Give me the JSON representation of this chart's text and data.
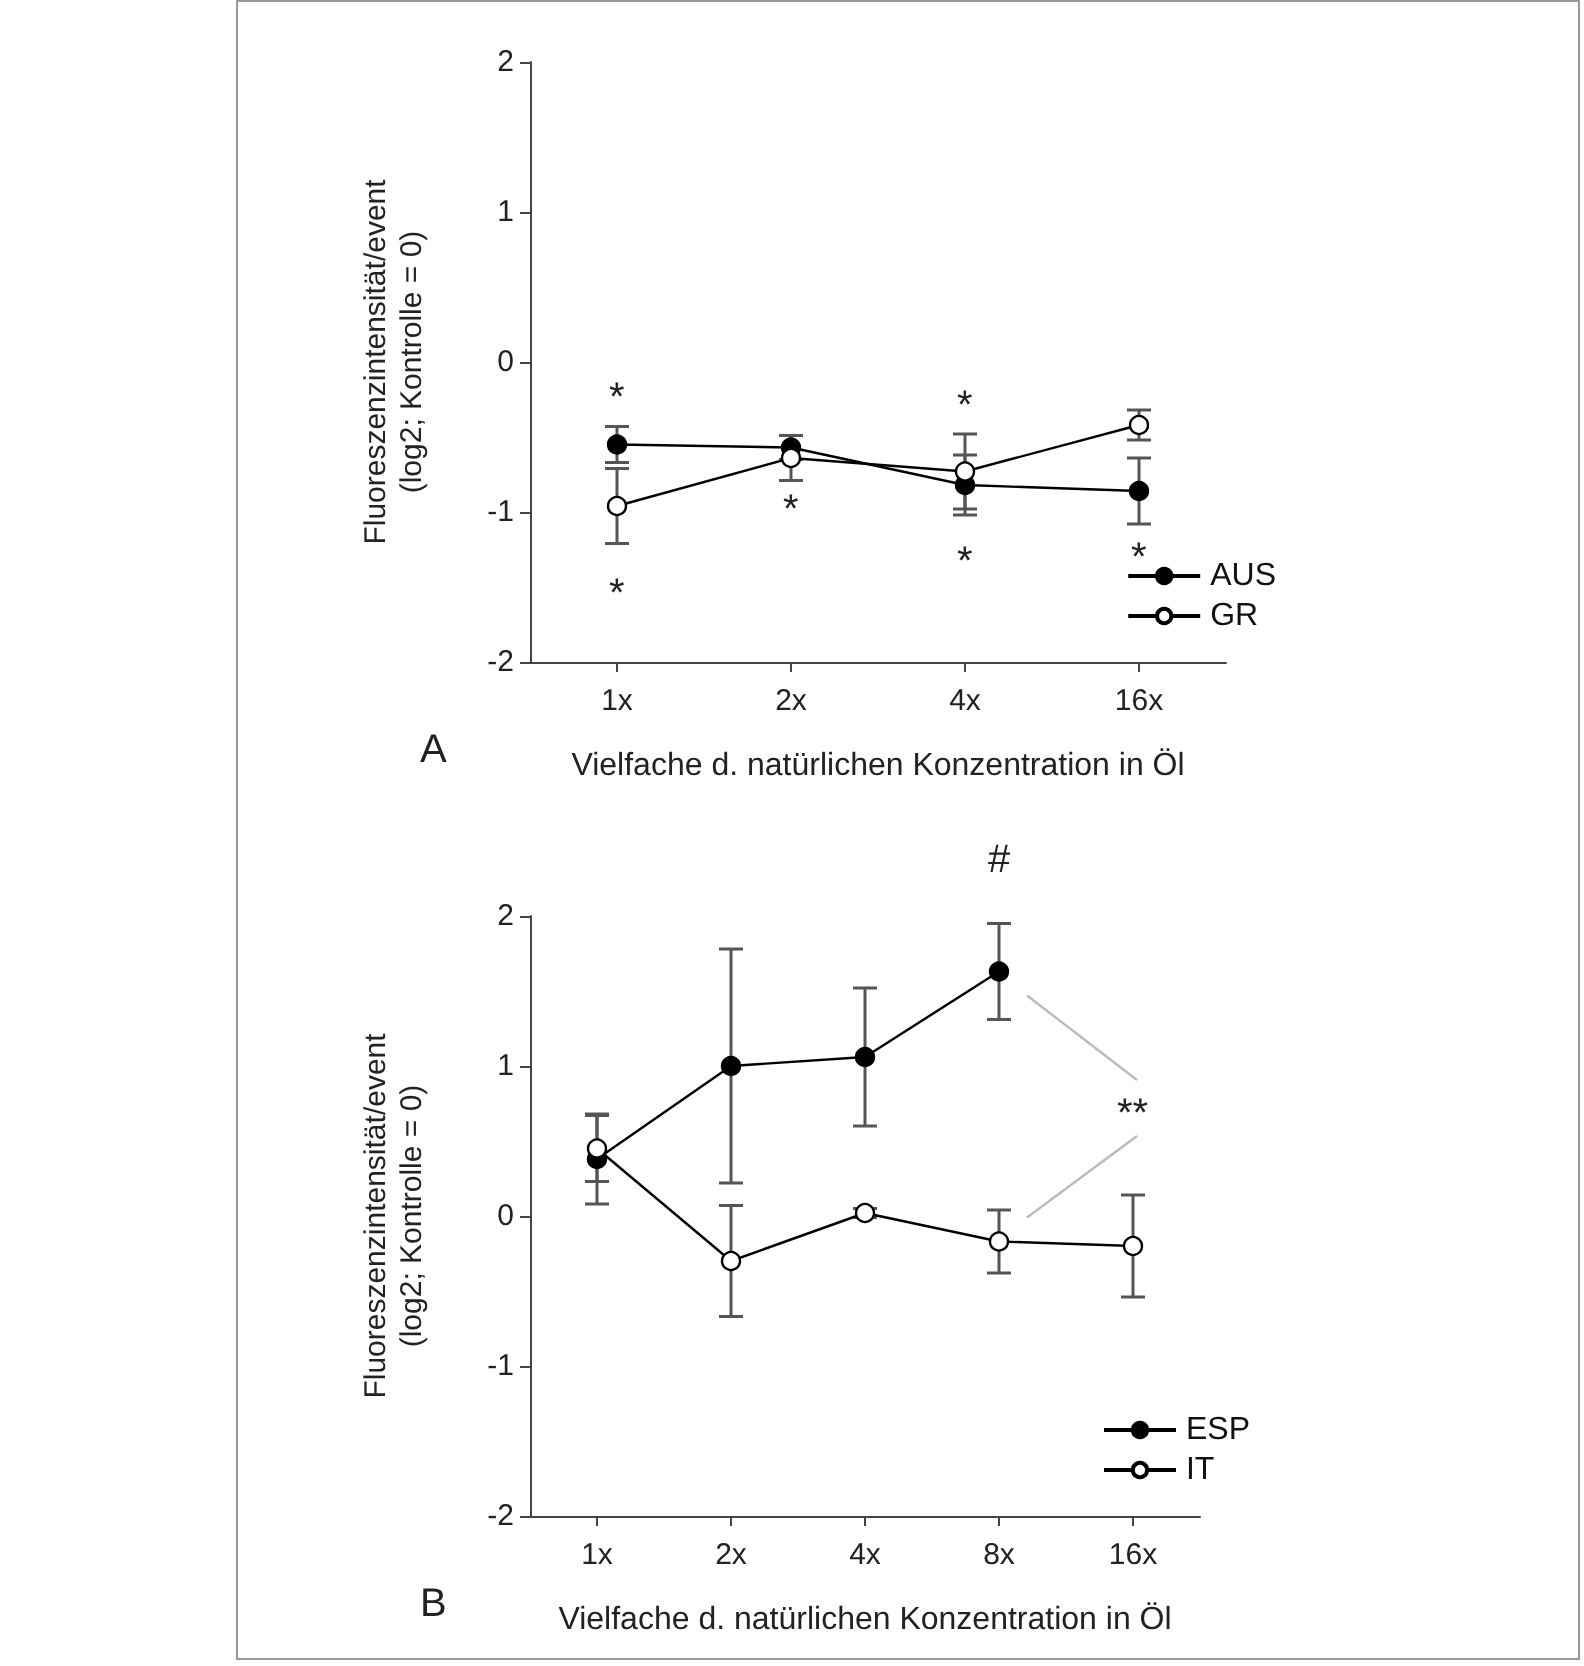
{
  "chart_data": [
    {
      "type": "line",
      "xlabel": "Vielfache d. natürlichen Konzentration in Öl",
      "ylabel": "Fluoreszenzintensität/event\n(log2; Kontrolle = 0)",
      "categories": [
        "1x",
        "2x",
        "4x",
        "16x"
      ],
      "ylim": [
        -2,
        2
      ],
      "yticks": [
        -2,
        -1,
        0,
        1,
        2
      ],
      "legend": "bottom right",
      "marker": "circle",
      "line_style": "solid",
      "series": [
        {
          "name": "AUS",
          "color": "#000000",
          "values": [
            -0.55,
            -0.57,
            -0.82,
            -0.86
          ],
          "errors": [
            0.12,
            0.08,
            0.2,
            0.22
          ]
        },
        {
          "name": "GR",
          "color": "#ffffff",
          "values": [
            -0.96,
            -0.64,
            -0.73,
            -0.42
          ],
          "errors": [
            0.25,
            0.15,
            0.25,
            0.1
          ]
        }
      ],
      "annotations": [
        "A",
        "*",
        "*",
        "*",
        "*",
        "*",
        "*"
      ]
    },
    {
      "type": "line",
      "xlabel": "Vielfache d. natürlichen Konzentration in Öl",
      "ylabel": "Fluoreszenzintensität/event\n(log2; Kontrolle = 0)",
      "categories": [
        "1x",
        "2x",
        "4x",
        "8x",
        "16x"
      ],
      "ylim": [
        -2,
        2
      ],
      "yticks": [
        -2,
        -1,
        0,
        1,
        2
      ],
      "legend": "bottom right",
      "marker": "circle",
      "line_style": "solid",
      "series": [
        {
          "name": "ESP",
          "color": "#000000",
          "values": [
            0.38,
            1.0,
            1.06,
            1.63,
            null
          ],
          "errors": [
            0.3,
            0.78,
            0.46,
            0.32,
            null
          ]
        },
        {
          "name": "IT",
          "color": "#ffffff",
          "values": [
            0.45,
            -0.3,
            0.02,
            -0.17,
            -0.2
          ],
          "errors": [
            0.22,
            0.37,
            0.03,
            0.21,
            0.34
          ]
        }
      ],
      "annotations": [
        "B",
        "#",
        "**"
      ]
    }
  ]
}
